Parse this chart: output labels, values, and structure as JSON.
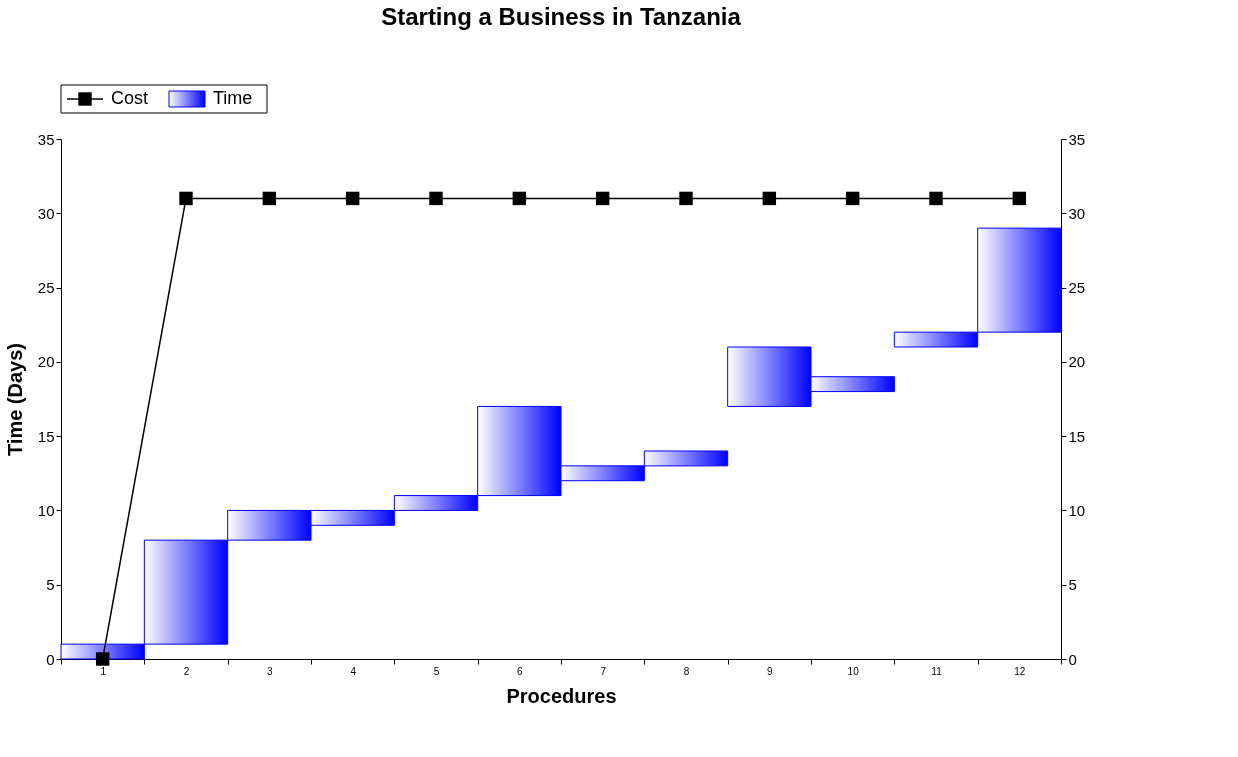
{
  "chart_data": {
    "type": "bar",
    "title": "Starting a Business in Tanzania",
    "xlabel": "Procedures",
    "ylabel": "Time (Days)",
    "categories": [
      "1",
      "2",
      "3",
      "4",
      "5",
      "6",
      "7",
      "8",
      "9",
      "10",
      "11",
      "12"
    ],
    "series": [
      {
        "name": "Cost",
        "type": "line",
        "axis": "y2",
        "color": "#000000",
        "values": [
          0,
          31,
          31,
          31,
          31,
          31,
          31,
          31,
          31,
          31,
          31,
          31
        ]
      },
      {
        "name": "Time",
        "type": "bar",
        "color": "#0000ff",
        "base": [
          0,
          1,
          8,
          9,
          10,
          11,
          12,
          13,
          17,
          18,
          21,
          22
        ],
        "values": [
          1,
          7,
          2,
          1,
          1,
          6,
          1,
          1,
          4,
          1,
          1,
          7
        ]
      }
    ],
    "marker": "square",
    "ylim": [
      0,
      35
    ],
    "yticks": [
      0,
      5,
      10,
      15,
      20,
      25,
      30,
      35
    ],
    "y2lim": [
      0,
      35
    ],
    "y2ticks": [
      0,
      5,
      10,
      15,
      20,
      25,
      30,
      35
    ],
    "legend": "top left",
    "grid": false
  }
}
